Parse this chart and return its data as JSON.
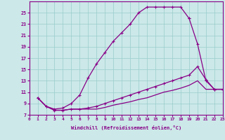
{
  "background_color": "#cce8e8",
  "grid_color": "#99cccc",
  "line_color": "#880088",
  "xlabel": "Windchill (Refroidissement éolien,°C)",
  "xlim": [
    0,
    23
  ],
  "ylim": [
    7,
    27
  ],
  "xticks": [
    0,
    1,
    2,
    3,
    4,
    5,
    6,
    7,
    8,
    9,
    10,
    11,
    12,
    13,
    14,
    15,
    16,
    17,
    18,
    19,
    20,
    21,
    22,
    23
  ],
  "yticks": [
    7,
    9,
    11,
    13,
    15,
    17,
    19,
    21,
    23,
    25
  ],
  "curve1_x": [
    1,
    2,
    3,
    4,
    5,
    6,
    7,
    8,
    9,
    10,
    11,
    12,
    13,
    14,
    15,
    16,
    17,
    18,
    19
  ],
  "curve1_y": [
    10,
    8.5,
    8,
    8.2,
    9,
    10.5,
    13.5,
    16,
    18,
    20,
    21.5,
    23,
    25,
    26,
    26,
    26,
    26,
    26,
    24
  ],
  "curve2_x": [
    1,
    2,
    3,
    4,
    19,
    20,
    21,
    22,
    23
  ],
  "curve2_y": [
    10,
    8.5,
    8,
    8,
    24,
    19.5,
    13,
    11.5,
    11.5
  ],
  "curve3_x": [
    1,
    2,
    3,
    4,
    5,
    6,
    7,
    8,
    9,
    10,
    11,
    12,
    13,
    14,
    15,
    16,
    17,
    18,
    19,
    20,
    21,
    22,
    23
  ],
  "curve3_y": [
    10,
    8.5,
    7.8,
    7.8,
    8,
    8,
    8.2,
    8.5,
    9,
    9.5,
    10,
    10.5,
    11,
    11.5,
    12,
    12.5,
    13,
    13.5,
    14,
    15.5,
    13.2,
    11.5,
    11.5
  ],
  "curve4_x": [
    1,
    2,
    3,
    4,
    5,
    6,
    7,
    8,
    9,
    10,
    11,
    12,
    13,
    14,
    15,
    16,
    17,
    18,
    19,
    20,
    21,
    22,
    23
  ],
  "curve4_y": [
    10,
    8.5,
    7.8,
    7.8,
    8,
    8,
    8,
    8,
    8.3,
    8.7,
    9,
    9.3,
    9.7,
    10,
    10.5,
    11,
    11.3,
    11.7,
    12.2,
    13,
    11.5,
    11.5,
    11.5
  ]
}
